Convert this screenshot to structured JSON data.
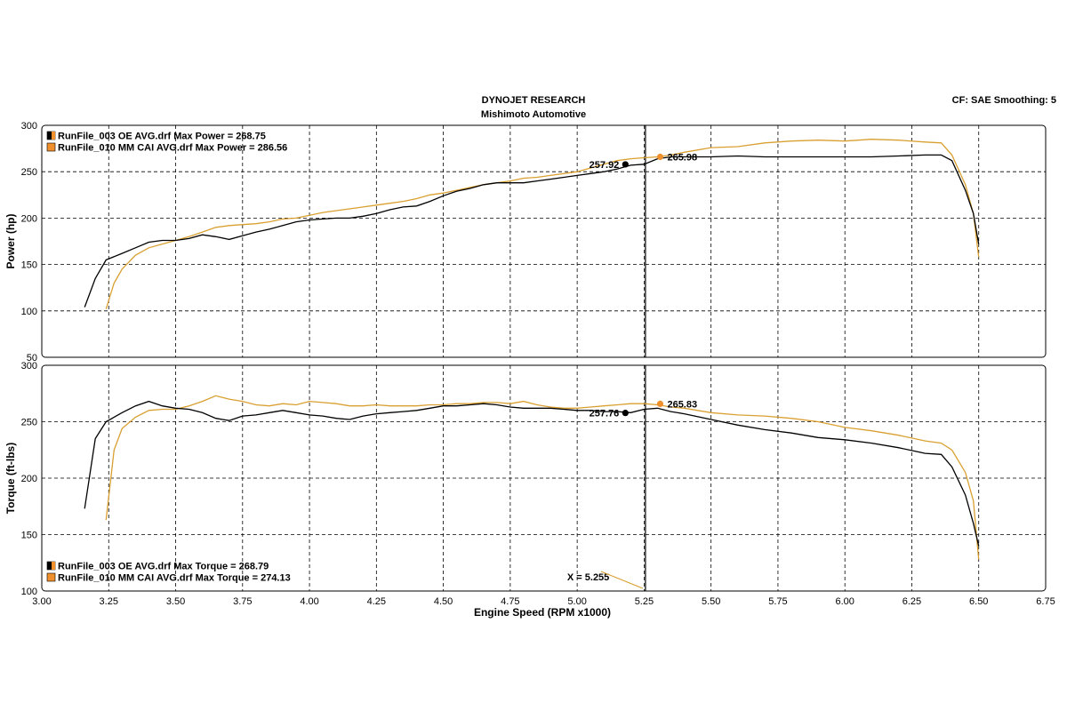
{
  "header": {
    "title": "DYNOJET RESEARCH",
    "subtitle": "Mishimoto Automotive",
    "settings": "CF: SAE  Smoothing: 5"
  },
  "colors": {
    "oe": "#000000",
    "cai": "#d9a031",
    "marker_cai": "#f0902c",
    "cursor": "#000000"
  },
  "chart_data": [
    {
      "type": "line",
      "ylabel": "Power (hp)",
      "xlabel": "Engine Speed (RPM x1000)",
      "xlim": [
        3.0,
        6.75
      ],
      "ylim": [
        50,
        300
      ],
      "xticks": [
        "3.00",
        "3.25",
        "3.50",
        "3.75",
        "4.00",
        "4.25",
        "4.50",
        "4.75",
        "5.00",
        "5.25",
        "5.50",
        "5.75",
        "6.00",
        "6.25",
        "6.50",
        "6.75"
      ],
      "yticks": [
        "300",
        "250",
        "200",
        "150",
        "100",
        "50"
      ],
      "grid": true,
      "legend_position": "top-left",
      "cursor_x": 5.255,
      "cursor_label": "X = 5.255",
      "series": [
        {
          "name": "RunFile_003 OE AVG.drf Max Power = 268.75",
          "color_key": "oe",
          "x": [
            3.16,
            3.2,
            3.24,
            3.3,
            3.35,
            3.4,
            3.45,
            3.5,
            3.55,
            3.6,
            3.65,
            3.7,
            3.75,
            3.8,
            3.85,
            3.9,
            3.95,
            4.0,
            4.05,
            4.1,
            4.15,
            4.2,
            4.25,
            4.3,
            4.35,
            4.4,
            4.45,
            4.5,
            4.55,
            4.6,
            4.65,
            4.7,
            4.75,
            4.8,
            4.85,
            4.9,
            4.95,
            5.0,
            5.05,
            5.1,
            5.15,
            5.2,
            5.25,
            5.3,
            5.35,
            5.4,
            5.5,
            5.6,
            5.7,
            5.8,
            5.9,
            6.0,
            6.1,
            6.2,
            6.3,
            6.36,
            6.4,
            6.45,
            6.48,
            6.5
          ],
          "y": [
            104,
            135,
            155,
            162,
            168,
            174,
            176,
            176,
            178,
            182,
            180,
            177,
            181,
            185,
            188,
            192,
            196,
            198,
            199,
            200,
            200,
            202,
            205,
            209,
            212,
            213,
            218,
            224,
            229,
            232,
            236,
            238,
            238,
            238,
            240,
            242,
            244,
            246,
            248,
            250,
            253,
            257,
            258,
            264,
            266,
            266,
            266,
            267,
            266,
            266,
            266,
            266,
            266,
            267,
            268,
            268,
            262,
            230,
            205,
            172
          ]
        },
        {
          "name": "RunFile_010 MM CAI AVG.drf Max Power = 286.56",
          "color_key": "cai",
          "x": [
            3.24,
            3.27,
            3.3,
            3.35,
            3.4,
            3.45,
            3.5,
            3.55,
            3.6,
            3.65,
            3.7,
            3.75,
            3.8,
            3.85,
            3.9,
            3.95,
            4.0,
            4.05,
            4.1,
            4.15,
            4.2,
            4.25,
            4.3,
            4.35,
            4.4,
            4.45,
            4.5,
            4.55,
            4.6,
            4.65,
            4.7,
            4.75,
            4.8,
            4.85,
            4.9,
            4.95,
            5.0,
            5.05,
            5.1,
            5.15,
            5.2,
            5.25,
            5.3,
            5.35,
            5.4,
            5.5,
            5.6,
            5.7,
            5.8,
            5.9,
            6.0,
            6.1,
            6.2,
            6.3,
            6.36,
            6.4,
            6.45,
            6.48,
            6.5
          ],
          "y": [
            102,
            130,
            145,
            160,
            168,
            172,
            176,
            180,
            185,
            190,
            192,
            193,
            194,
            196,
            199,
            200,
            203,
            206,
            208,
            210,
            212,
            214,
            216,
            218,
            221,
            225,
            227,
            230,
            233,
            236,
            238,
            240,
            243,
            244,
            246,
            248,
            250,
            254,
            258,
            262,
            264,
            265,
            266,
            268,
            271,
            276,
            277,
            281,
            283,
            284,
            283,
            285,
            284,
            282,
            281,
            268,
            236,
            205,
            158
          ]
        }
      ],
      "markers": [
        {
          "x": 5.18,
          "y": 257.92,
          "label": "257.92",
          "color_key": "oe"
        },
        {
          "x": 5.31,
          "y": 265.98,
          "label": "265.98",
          "color_key": "marker_cai"
        }
      ]
    },
    {
      "type": "line",
      "ylabel": "Torque (ft-lbs)",
      "xlabel": "Engine Speed (RPM x1000)",
      "xlim": [
        3.0,
        6.75
      ],
      "ylim": [
        100,
        300
      ],
      "xticks": [
        "3.00",
        "3.25",
        "3.50",
        "3.75",
        "4.00",
        "4.25",
        "4.50",
        "4.75",
        "5.00",
        "5.25",
        "5.50",
        "5.75",
        "6.00",
        "6.25",
        "6.50",
        "6.75"
      ],
      "yticks": [
        "300",
        "250",
        "200",
        "150",
        "100"
      ],
      "grid": true,
      "legend_position": "bottom-left",
      "cursor_x": 5.255,
      "cursor_label": "X = 5.255",
      "series": [
        {
          "name": "RunFile_003 OE AVG.drf Max Torque = 268.79",
          "color_key": "oe",
          "x": [
            3.16,
            3.2,
            3.24,
            3.3,
            3.35,
            3.4,
            3.45,
            3.5,
            3.55,
            3.6,
            3.65,
            3.7,
            3.75,
            3.8,
            3.85,
            3.9,
            3.95,
            4.0,
            4.05,
            4.1,
            4.15,
            4.2,
            4.25,
            4.3,
            4.35,
            4.4,
            4.45,
            4.5,
            4.55,
            4.6,
            4.65,
            4.7,
            4.75,
            4.8,
            4.85,
            4.9,
            4.95,
            5.0,
            5.05,
            5.1,
            5.15,
            5.2,
            5.25,
            5.3,
            5.35,
            5.4,
            5.5,
            5.6,
            5.7,
            5.8,
            5.9,
            6.0,
            6.1,
            6.2,
            6.3,
            6.36,
            6.4,
            6.45,
            6.48,
            6.5
          ],
          "y": [
            173,
            235,
            250,
            258,
            264,
            268,
            264,
            262,
            261,
            258,
            253,
            251,
            255,
            256,
            258,
            260,
            258,
            256,
            255,
            253,
            252,
            255,
            257,
            258,
            259,
            260,
            262,
            264,
            264,
            265,
            266,
            265,
            263,
            262,
            262,
            262,
            261,
            260,
            260,
            259,
            259,
            258,
            261,
            262,
            259,
            257,
            252,
            247,
            243,
            240,
            236,
            234,
            231,
            227,
            222,
            221,
            210,
            185,
            160,
            140
          ]
        },
        {
          "name": "RunFile_010 MM CAI AVG.drf Max Torque = 274.13",
          "color_key": "cai",
          "x": [
            3.24,
            3.27,
            3.3,
            3.35,
            3.4,
            3.45,
            3.5,
            3.55,
            3.6,
            3.65,
            3.7,
            3.75,
            3.8,
            3.85,
            3.9,
            3.95,
            4.0,
            4.05,
            4.1,
            4.15,
            4.2,
            4.25,
            4.3,
            4.35,
            4.4,
            4.45,
            4.5,
            4.55,
            4.6,
            4.65,
            4.7,
            4.75,
            4.8,
            4.85,
            4.9,
            4.95,
            5.0,
            5.05,
            5.1,
            5.15,
            5.2,
            5.25,
            5.3,
            5.35,
            5.4,
            5.5,
            5.6,
            5.7,
            5.8,
            5.9,
            6.0,
            6.1,
            6.2,
            6.3,
            6.36,
            6.4,
            6.45,
            6.48,
            6.5
          ],
          "y": [
            163,
            225,
            244,
            254,
            260,
            261,
            261,
            264,
            268,
            273,
            270,
            268,
            265,
            264,
            266,
            265,
            268,
            267,
            266,
            264,
            264,
            265,
            264,
            264,
            264,
            265,
            265,
            266,
            266,
            267,
            267,
            266,
            268,
            265,
            263,
            262,
            262,
            263,
            264,
            265,
            266,
            266,
            265,
            263,
            262,
            258,
            256,
            255,
            253,
            250,
            245,
            242,
            238,
            233,
            231,
            225,
            205,
            180,
            128
          ]
        }
      ],
      "markers": [
        {
          "x": 5.18,
          "y": 257.76,
          "label": "257.76",
          "color_key": "oe"
        },
        {
          "x": 5.31,
          "y": 265.83,
          "label": "265.83",
          "color_key": "marker_cai"
        }
      ]
    }
  ]
}
